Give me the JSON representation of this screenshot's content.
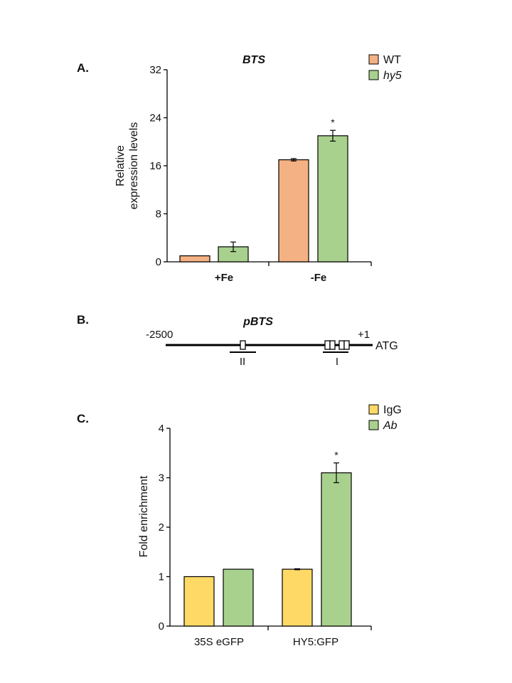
{
  "panels": {
    "a": {
      "label": "A."
    },
    "b": {
      "label": "B.",
      "title": "pBTS",
      "left_label": "-2500",
      "right_label": "+1",
      "gene_label": "ATG",
      "regions": [
        "II",
        "I"
      ]
    },
    "c": {
      "label": "C."
    }
  },
  "chart_data": [
    {
      "type": "bar",
      "title": "BTS",
      "ylabel": "Relative expression levels",
      "ylabel_lines": [
        "Relative",
        "expression levels"
      ],
      "xlabel": "",
      "ylim": [
        0,
        32
      ],
      "yticks": [
        "0",
        "8",
        "16",
        "24",
        "32"
      ],
      "categories": [
        "+Fe",
        "-Fe"
      ],
      "series": [
        {
          "name": "WT",
          "values": [
            1.0,
            17.0
          ],
          "errors": [
            0,
            0.2
          ],
          "color": "#F4B183",
          "italic": false
        },
        {
          "name": "hy5",
          "values": [
            2.5,
            21.0
          ],
          "errors": [
            0.8,
            0.9
          ],
          "color": "#A9D18E",
          "italic": true
        }
      ],
      "annotations": [
        {
          "category": "-Fe",
          "series": "hy5",
          "text": "*"
        }
      ],
      "legend": "top-right"
    },
    {
      "type": "bar",
      "title": "",
      "ylabel": "Fold enrichment",
      "xlabel": "",
      "ylim": [
        0,
        4
      ],
      "yticks": [
        "0",
        "1",
        "2",
        "3",
        "4"
      ],
      "categories": [
        "35S eGFP",
        "HY5:GFP"
      ],
      "series": [
        {
          "name": "IgG",
          "values": [
            1.0,
            1.15
          ],
          "errors": [
            0,
            0.01
          ],
          "color": "#FFD966",
          "italic": false
        },
        {
          "name": "Ab",
          "values": [
            1.15,
            3.1
          ],
          "errors": [
            0,
            0.2
          ],
          "color": "#A9D18E",
          "italic": true
        }
      ],
      "annotations": [
        {
          "category": "HY5:GFP",
          "series": "Ab",
          "text": "*"
        }
      ],
      "legend": "top-right"
    }
  ]
}
